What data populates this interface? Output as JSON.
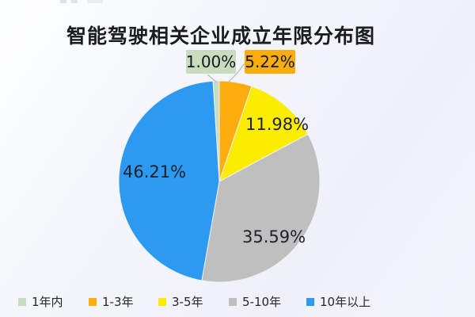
{
  "title": "智能驾驶相关企业成立年限分布图",
  "chart_data": {
    "type": "pie",
    "title": "智能驾驶相关企业成立年限分布图",
    "categories": [
      "1年内",
      "1-3年",
      "3-5年",
      "5-10年",
      "10年以上"
    ],
    "values": [
      1.0,
      5.22,
      11.98,
      35.59,
      46.21
    ],
    "labels": [
      "1.00%",
      "5.22%",
      "11.98%",
      "35.59%",
      "46.21%"
    ],
    "colors": [
      "#c9dcbd",
      "#fbad0e",
      "#fcec00",
      "#bfbfbf",
      "#2b9af0"
    ],
    "unit": "percent",
    "legend_position": "bottom",
    "grid": false,
    "label_layout": "small slices (1年内, 1-3年) use callout boxes above the pie; larger slices labeled inside",
    "rotation_note": "slices drawn clockwise starting so that the 1年内 sliver ends at 12 o'clock"
  },
  "legend": {
    "items": [
      {
        "label": "1年内",
        "color": "#c9dcbd"
      },
      {
        "label": "1-3年",
        "color": "#fbad0e"
      },
      {
        "label": "3-5年",
        "color": "#fcec00"
      },
      {
        "label": "5-10年",
        "color": "#bfbfbf"
      },
      {
        "label": "10年以上",
        "color": "#2b9af0"
      }
    ]
  },
  "leader_line_color": "#b3b8bf",
  "background_accent": "#eef1f8"
}
